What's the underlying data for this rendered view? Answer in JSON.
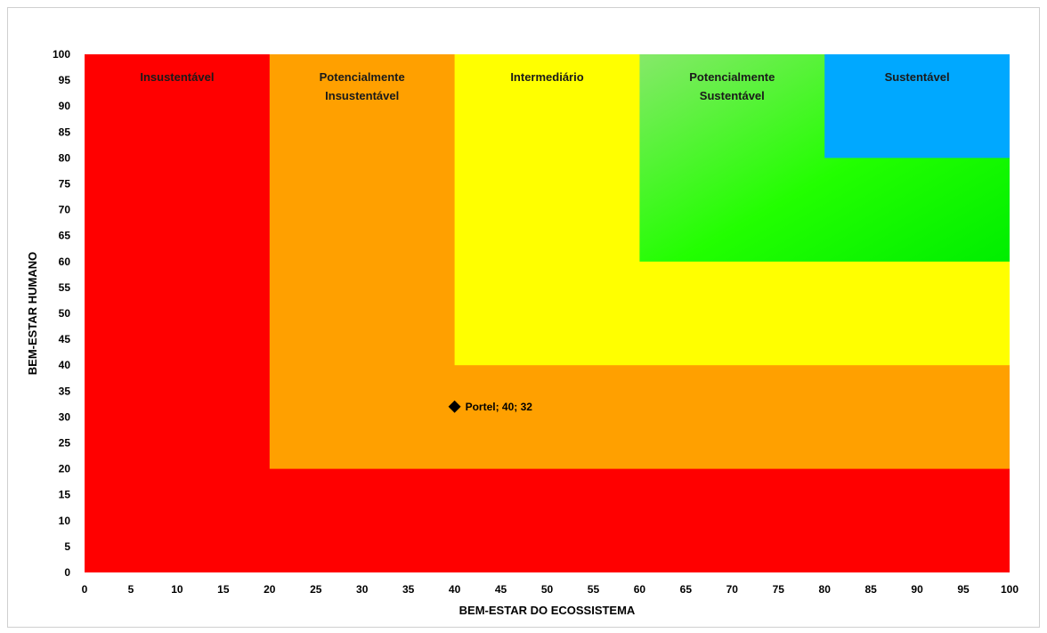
{
  "chart_data": {
    "type": "scatter",
    "title": "",
    "xlabel": "BEM-ESTAR DO ECOSSISTEMA",
    "ylabel": "BEM-ESTAR HUMANO",
    "xlim": [
      0,
      100
    ],
    "ylim": [
      0,
      100
    ],
    "xticks": [
      0,
      5,
      10,
      15,
      20,
      25,
      30,
      35,
      40,
      45,
      50,
      55,
      60,
      65,
      70,
      75,
      80,
      85,
      90,
      95,
      100
    ],
    "yticks": [
      0,
      5,
      10,
      15,
      20,
      25,
      30,
      35,
      40,
      45,
      50,
      55,
      60,
      65,
      70,
      75,
      80,
      85,
      90,
      95,
      100
    ],
    "grid": false,
    "zones": [
      {
        "label_lines": [
          "Insustentável"
        ],
        "min": 0,
        "color": "#ff0000"
      },
      {
        "label_lines": [
          "Potencialmente",
          "Insustentável"
        ],
        "min": 20,
        "color": "#ffa000"
      },
      {
        "label_lines": [
          "Intermediário"
        ],
        "min": 40,
        "color": "#ffff00"
      },
      {
        "label_lines": [
          "Potencialmente",
          "Sustentável"
        ],
        "min": 60,
        "color": "#22ff00"
      },
      {
        "label_lines": [
          "Sustentável"
        ],
        "min": 80,
        "color": "#00a8ff"
      }
    ],
    "points": [
      {
        "x": 40,
        "y": 32,
        "label": "Portel; 40; 32",
        "marker": "diamond",
        "color": "#000000"
      }
    ]
  }
}
